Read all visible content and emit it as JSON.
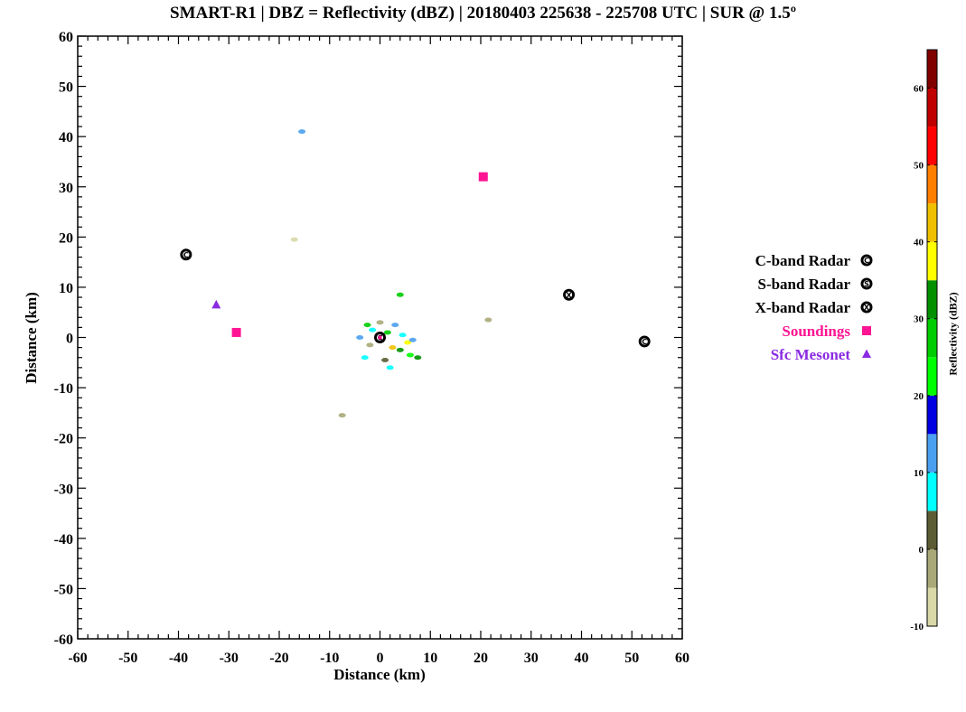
{
  "chart_data": {
    "type": "scatter",
    "title": "SMART-R1 | DBZ = Reflectivity (dBZ) | 20180403 225638 - 225708 UTC | SUR @ 1.5º",
    "xlabel": "Distance (km)",
    "ylabel": "Distance (km)",
    "xlim": [
      -60,
      60
    ],
    "ylim": [
      -60,
      60
    ],
    "xticks": [
      -60,
      -50,
      -40,
      -30,
      -20,
      -10,
      0,
      10,
      20,
      30,
      40,
      50,
      60
    ],
    "yticks": [
      -60,
      -50,
      -40,
      -30,
      -20,
      -10,
      0,
      10,
      20,
      30,
      40,
      50,
      60
    ],
    "grid": false,
    "legend_position": "right",
    "series": [
      {
        "name": "C-band Radar",
        "marker": "circle-C",
        "color": "#000000",
        "points": [
          {
            "x": -38.5,
            "y": 16.5
          },
          {
            "x": 0,
            "y": 0
          },
          {
            "x": 52.5,
            "y": -0.8
          }
        ]
      },
      {
        "name": "S-band Radar",
        "marker": "circle-S",
        "color": "#000000",
        "points": []
      },
      {
        "name": "X-band Radar",
        "marker": "circle-X",
        "color": "#000000",
        "points": [
          {
            "x": 37.5,
            "y": 8.5
          }
        ]
      },
      {
        "name": "Soundings",
        "marker": "square",
        "color": "#ff1493",
        "points": [
          {
            "x": 20.5,
            "y": 32
          },
          {
            "x": -28.5,
            "y": 1
          }
        ]
      },
      {
        "name": "Sfc Mesonet",
        "marker": "triangle",
        "color": "#8a2be2",
        "points": [
          {
            "x": -32.5,
            "y": 6.5
          }
        ]
      }
    ],
    "colorbar": {
      "label": "Reflectivity (dBZ)",
      "ticks": [
        -10,
        0,
        10,
        20,
        30,
        40,
        50,
        60
      ],
      "range": [
        -10,
        65
      ],
      "bins": [
        {
          "from": -10,
          "to": -5,
          "color": "#d8d8a8"
        },
        {
          "from": -5,
          "to": 0,
          "color": "#a8a878"
        },
        {
          "from": 0,
          "to": 5,
          "color": "#5c5c34"
        },
        {
          "from": 5,
          "to": 10,
          "color": "#00ffff"
        },
        {
          "from": 10,
          "to": 15,
          "color": "#4aa0f0"
        },
        {
          "from": 15,
          "to": 20,
          "color": "#0000e0"
        },
        {
          "from": 20,
          "to": 25,
          "color": "#00ff00"
        },
        {
          "from": 25,
          "to": 30,
          "color": "#00cc00"
        },
        {
          "from": 30,
          "to": 35,
          "color": "#009000"
        },
        {
          "from": 35,
          "to": 40,
          "color": "#ffff00"
        },
        {
          "from": 40,
          "to": 45,
          "color": "#f0c000"
        },
        {
          "from": 45,
          "to": 50,
          "color": "#ff8000"
        },
        {
          "from": 50,
          "to": 55,
          "color": "#ff0000"
        },
        {
          "from": 55,
          "to": 60,
          "color": "#c00000"
        },
        {
          "from": 60,
          "to": 65,
          "color": "#800000"
        }
      ]
    },
    "echo_patches": [
      {
        "x": 0,
        "y": 0,
        "color": "#4aa0f0"
      },
      {
        "x": -1.5,
        "y": 1.5,
        "color": "#00ffff"
      },
      {
        "x": 1.5,
        "y": 1,
        "color": "#00cc00"
      },
      {
        "x": -2,
        "y": -1.5,
        "color": "#a8a878"
      },
      {
        "x": 2.5,
        "y": -2,
        "color": "#f0c000"
      },
      {
        "x": 4,
        "y": -2.5,
        "color": "#009000"
      },
      {
        "x": 6,
        "y": -3.5,
        "color": "#00ff00"
      },
      {
        "x": 7.5,
        "y": -4,
        "color": "#009000"
      },
      {
        "x": -3,
        "y": -4,
        "color": "#00ffff"
      },
      {
        "x": 5.5,
        "y": -1,
        "color": "#ffff00"
      },
      {
        "x": 1,
        "y": -4.5,
        "color": "#5c5c34"
      },
      {
        "x": -2.5,
        "y": 2.5,
        "color": "#00cc00"
      },
      {
        "x": 3,
        "y": 2.5,
        "color": "#4aa0f0"
      },
      {
        "x": -4,
        "y": 0,
        "color": "#4aa0f0"
      },
      {
        "x": 4.5,
        "y": 0.5,
        "color": "#00ffff"
      },
      {
        "x": 0,
        "y": 3,
        "color": "#a8a878"
      },
      {
        "x": 2,
        "y": -6,
        "color": "#00ffff"
      },
      {
        "x": 6.5,
        "y": -0.5,
        "color": "#4aa0f0"
      },
      {
        "x": -15.5,
        "y": 41,
        "color": "#4aa0f0"
      },
      {
        "x": -17,
        "y": 19.5,
        "color": "#d8d8a8"
      },
      {
        "x": 21.5,
        "y": 3.5,
        "color": "#a8a878"
      },
      {
        "x": 4,
        "y": 8.5,
        "color": "#00cc00"
      },
      {
        "x": -7.5,
        "y": -15.5,
        "color": "#a8a878"
      }
    ]
  }
}
